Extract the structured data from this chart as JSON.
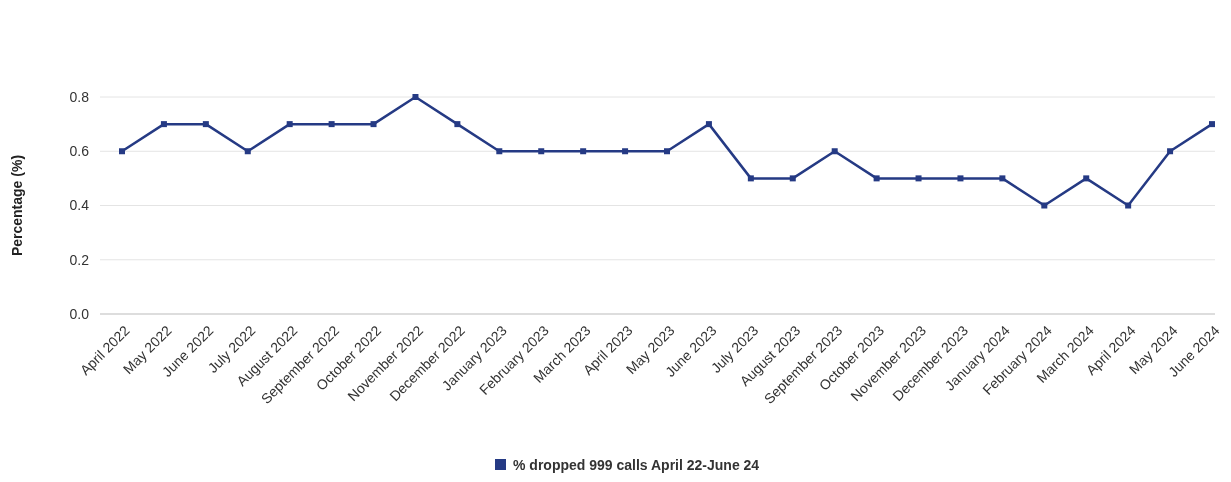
{
  "chart_data": {
    "type": "line",
    "ylabel": "Percentage (%)",
    "categories": [
      "April 2022",
      "May 2022",
      "June 2022",
      "July 2022",
      "August 2022",
      "September 2022",
      "October 2022",
      "November 2022",
      "December 2022",
      "January 2023",
      "February 2023",
      "March 2023",
      "April 2023",
      "May 2023",
      "June 2023",
      "July 2023",
      "August 2023",
      "September 2023",
      "October 2023",
      "November 2023",
      "December 2023",
      "January 2024",
      "February 2024",
      "March 2024",
      "April 2024",
      "May 2024",
      "June 2024"
    ],
    "series": [
      {
        "name": "% dropped 999 calls April 22-June 24",
        "color": "#253a84",
        "values": [
          0.6,
          0.7,
          0.7,
          0.6,
          0.7,
          0.7,
          0.7,
          0.8,
          0.7,
          0.6,
          0.6,
          0.6,
          0.6,
          0.6,
          0.7,
          0.5,
          0.5,
          0.6,
          0.5,
          0.5,
          0.5,
          0.5,
          0.4,
          0.5,
          0.4,
          0.6,
          0.7
        ]
      }
    ],
    "ylim": [
      0,
      0.8
    ],
    "yticks": [
      {
        "value": 0,
        "label": "0.0"
      },
      0.2,
      0.4,
      0.6,
      0.8
    ],
    "grid": "y",
    "legend": "bottom",
    "marker": "square",
    "line_style": "solid"
  }
}
